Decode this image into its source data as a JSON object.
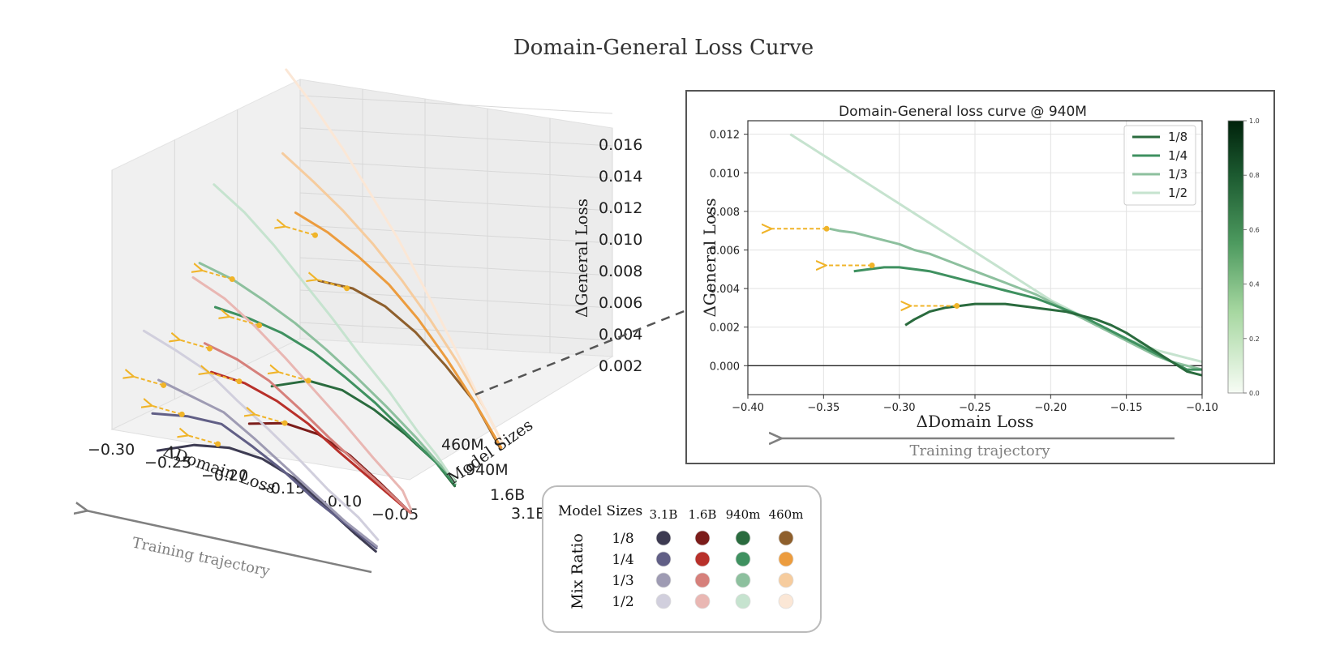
{
  "title": "Domain-General Loss Curve",
  "colors": {
    "3.1B": [
      "#3d3b52",
      "#615f86",
      "#9e9bb3",
      "#d1cfdd"
    ],
    "1.6B": [
      "#7b1c1a",
      "#b8302a",
      "#d6807b",
      "#e9b7b3"
    ],
    "940M": [
      "#2a6b3e",
      "#3f9160",
      "#8dc09e",
      "#c6e3cf"
    ],
    "460M": [
      "#8e5f2c",
      "#ec9c3e",
      "#f6cc9e",
      "#fbe7d6"
    ],
    "arrow": "#f0b429",
    "trajectory": "#808080"
  },
  "chart_data": [
    {
      "type": "line3d",
      "xlabel": "ΔDomain  Loss",
      "ylabel": "Model Sizes",
      "zlabel": "ΔGeneral Loss",
      "xticks": [
        "−0.30",
        "−0.25",
        "−0.20",
        "−0.15",
        "−0.10",
        "−0.05"
      ],
      "yticks": [
        "3.1B",
        "1.6B",
        "940M",
        "460M"
      ],
      "zticks": [
        "0.002",
        "0.004",
        "0.006",
        "0.008",
        "0.010",
        "0.012",
        "0.014",
        "0.016"
      ],
      "xlim": [
        -0.32,
        -0.04
      ],
      "zlim": [
        0.001,
        0.017
      ],
      "trajectory_label": "Training trajectory",
      "series": [
        {
          "size": "3.1B",
          "ratio": "1/8",
          "x": [
            -0.27,
            -0.24,
            -0.21,
            -0.18,
            -0.15,
            -0.12,
            -0.09,
            -0.07
          ],
          "z": [
            0.0006,
            0.0016,
            0.0021,
            0.0021,
            0.0016,
            0.0006,
            -0.0004,
            -0.001
          ]
        },
        {
          "size": "3.1B",
          "ratio": "1/4",
          "x": [
            -0.28,
            -0.25,
            -0.22,
            -0.19,
            -0.16,
            -0.13,
            -0.1,
            -0.07
          ],
          "z": [
            0.0026,
            0.0031,
            0.0033,
            0.0026,
            0.0018,
            0.0008,
            0.0,
            -0.0008
          ]
        },
        {
          "size": "3.1B",
          "ratio": "1/3",
          "x": [
            -0.28,
            -0.25,
            -0.22,
            -0.19,
            -0.16,
            -0.13,
            -0.1,
            -0.07
          ],
          "z": [
            0.0046,
            0.0043,
            0.004,
            0.0031,
            0.0021,
            0.0011,
            0.0001,
            -0.0007
          ]
        },
        {
          "size": "3.1B",
          "ratio": "1/2",
          "x": [
            -0.3,
            -0.27,
            -0.24,
            -0.21,
            -0.18,
            -0.15,
            -0.12,
            -0.09,
            -0.07
          ],
          "z": [
            0.0071,
            0.0066,
            0.006,
            0.0049,
            0.0039,
            0.0028,
            0.0016,
            0.0006,
            -0.0003
          ]
        },
        {
          "size": "1.6B",
          "ratio": "1/8",
          "x": [
            -0.23,
            -0.2,
            -0.17,
            -0.14,
            -0.11,
            -0.08
          ],
          "z": [
            0.0014,
            0.0021,
            0.0021,
            0.0015,
            0.0005,
            -0.0006
          ]
        },
        {
          "size": "1.6B",
          "ratio": "1/4",
          "x": [
            -0.27,
            -0.24,
            -0.21,
            -0.18,
            -0.15,
            -0.12,
            -0.09,
            -0.08
          ],
          "z": [
            0.0036,
            0.0036,
            0.0032,
            0.0025,
            0.0015,
            0.0006,
            -0.0003,
            -0.0006
          ]
        },
        {
          "size": "1.6B",
          "ratio": "1/3",
          "x": [
            -0.28,
            -0.25,
            -0.22,
            -0.19,
            -0.16,
            -0.13,
            -0.1,
            -0.08
          ],
          "z": [
            0.0051,
            0.0048,
            0.0042,
            0.0032,
            0.0021,
            0.0011,
            0.0001,
            -0.0006
          ]
        },
        {
          "size": "1.6B",
          "ratio": "1/2",
          "x": [
            -0.3,
            -0.27,
            -0.24,
            -0.21,
            -0.18,
            -0.15,
            -0.12,
            -0.09,
            -0.08
          ],
          "z": [
            0.0086,
            0.008,
            0.007,
            0.0058,
            0.0045,
            0.0032,
            0.0018,
            0.0005,
            -0.0004
          ]
        },
        {
          "size": "940M",
          "ratio": "1/8",
          "x": [
            -0.25,
            -0.22,
            -0.19,
            -0.16,
            -0.13,
            -0.1,
            -0.08
          ],
          "z": [
            0.0015,
            0.0025,
            0.0026,
            0.0021,
            0.0013,
            0.0003,
            -0.0007
          ]
        },
        {
          "size": "940M",
          "ratio": "1/4",
          "x": [
            -0.31,
            -0.28,
            -0.25,
            -0.22,
            -0.19,
            -0.16,
            -0.13,
            -0.1,
            -0.08
          ],
          "z": [
            0.0049,
            0.0049,
            0.0047,
            0.0042,
            0.0034,
            0.0025,
            0.0014,
            0.0003,
            -0.0006
          ]
        },
        {
          "size": "940M",
          "ratio": "1/3",
          "x": [
            -0.33,
            -0.3,
            -0.27,
            -0.24,
            -0.21,
            -0.18,
            -0.15,
            -0.12,
            -0.1,
            -0.08
          ],
          "z": [
            0.0071,
            0.0068,
            0.0062,
            0.0055,
            0.0046,
            0.0036,
            0.0025,
            0.0013,
            0.0004,
            -0.0004
          ]
        },
        {
          "size": "940M",
          "ratio": "1/2",
          "x": [
            -0.33,
            -0.3,
            -0.27,
            -0.24,
            -0.21,
            -0.18,
            -0.15,
            -0.12,
            -0.1,
            -0.08
          ],
          "z": [
            0.0118,
            0.0108,
            0.0095,
            0.008,
            0.0065,
            0.0049,
            0.0034,
            0.0017,
            0.0007,
            -0.0005
          ]
        },
        {
          "size": "460M",
          "ratio": "1/8",
          "x": [
            -0.26,
            -0.23,
            -0.2,
            -0.17,
            -0.14,
            -0.11,
            -0.08
          ],
          "z": [
            0.0059,
            0.0061,
            0.0057,
            0.0048,
            0.0035,
            0.002,
            -0.0002
          ]
        },
        {
          "size": "460M",
          "ratio": "1/4",
          "x": [
            -0.29,
            -0.26,
            -0.23,
            -0.2,
            -0.17,
            -0.14,
            -0.11,
            -0.08
          ],
          "z": [
            0.0093,
            0.0088,
            0.008,
            0.007,
            0.0056,
            0.0039,
            0.002,
            -0.0001
          ]
        },
        {
          "size": "460M",
          "ratio": "1/3",
          "x": [
            -0.31,
            -0.28,
            -0.25,
            -0.22,
            -0.19,
            -0.16,
            -0.13,
            -0.1,
            -0.08
          ],
          "z": [
            0.0124,
            0.0114,
            0.0103,
            0.009,
            0.0075,
            0.0058,
            0.0039,
            0.0018,
            0.0002
          ]
        },
        {
          "size": "460M",
          "ratio": "1/2",
          "x": [
            -0.32,
            -0.29,
            -0.26,
            -0.23,
            -0.2,
            -0.17,
            -0.14,
            -0.11,
            -0.08
          ],
          "z": [
            0.0172,
            0.0156,
            0.0138,
            0.0118,
            0.0098,
            0.0075,
            0.0051,
            0.0026,
            0.0002
          ]
        }
      ],
      "arrows": [
        {
          "size": "3.1B",
          "x": -0.22,
          "z": 0.0021
        },
        {
          "size": "3.1B",
          "x": -0.255,
          "z": 0.0031
        },
        {
          "size": "3.1B",
          "x": -0.275,
          "z": 0.0044
        },
        {
          "size": "1.6B",
          "x": -0.2,
          "z": 0.0021
        },
        {
          "size": "1.6B",
          "x": -0.245,
          "z": 0.0036
        },
        {
          "size": "1.6B",
          "x": -0.275,
          "z": 0.0049
        },
        {
          "size": "940M",
          "x": -0.22,
          "z": 0.0025
        },
        {
          "size": "940M",
          "x": -0.27,
          "z": 0.0047
        },
        {
          "size": "940M",
          "x": -0.3,
          "z": 0.0068
        },
        {
          "size": "460M",
          "x": -0.235,
          "z": 0.006
        },
        {
          "size": "460M",
          "x": -0.27,
          "z": 0.0084
        }
      ]
    },
    {
      "type": "line",
      "title": "Domain-General loss curve @ 940M",
      "xlabel": "ΔDomain  Loss",
      "ylabel": "ΔGeneral Loss",
      "xlim": [
        -0.4,
        -0.1
      ],
      "ylim": [
        -0.0015,
        0.0127
      ],
      "xticks": [
        -0.4,
        -0.35,
        -0.3,
        -0.25,
        -0.2,
        -0.15,
        -0.1
      ],
      "xtick_labels": [
        "−0.40",
        "−0.35",
        "−0.30",
        "−0.25",
        "−0.20",
        "−0.15",
        "−0.10"
      ],
      "yticks": [
        0.0,
        0.002,
        0.004,
        0.006,
        0.008,
        0.01,
        0.012
      ],
      "ytick_labels": [
        "0.000",
        "0.002",
        "0.004",
        "0.006",
        "0.008",
        "0.010",
        "0.012"
      ],
      "colorbar_ticks": [
        "0.0",
        "0.2",
        "0.4",
        "0.6",
        "0.8",
        "1.0"
      ],
      "trajectory_label": "Training trajectory",
      "series": [
        {
          "name": "1/8",
          "x": [
            -0.296,
            -0.29,
            -0.28,
            -0.27,
            -0.26,
            -0.25,
            -0.24,
            -0.23,
            -0.22,
            -0.21,
            -0.2,
            -0.19,
            -0.18,
            -0.17,
            -0.16,
            -0.15,
            -0.14,
            -0.13,
            -0.12,
            -0.11,
            -0.1
          ],
          "y": [
            0.0021,
            0.0024,
            0.0028,
            0.003,
            0.0031,
            0.0032,
            0.0032,
            0.0032,
            0.0031,
            0.003,
            0.0029,
            0.0028,
            0.0026,
            0.0024,
            0.0021,
            0.0017,
            0.0012,
            0.0007,
            0.0002,
            -0.0003,
            -0.0005
          ]
        },
        {
          "name": "1/4",
          "x": [
            -0.33,
            -0.32,
            -0.31,
            -0.3,
            -0.29,
            -0.28,
            -0.27,
            -0.26,
            -0.25,
            -0.24,
            -0.23,
            -0.22,
            -0.21,
            -0.2,
            -0.19,
            -0.18,
            -0.17,
            -0.16,
            -0.15,
            -0.14,
            -0.13,
            -0.12,
            -0.11,
            -0.1
          ],
          "y": [
            0.0049,
            0.005,
            0.0051,
            0.0051,
            0.005,
            0.0049,
            0.0047,
            0.0045,
            0.0043,
            0.0041,
            0.0039,
            0.0037,
            0.0035,
            0.0032,
            0.0029,
            0.0026,
            0.0022,
            0.0018,
            0.0014,
            0.001,
            0.0006,
            0.0002,
            -0.0002,
            -0.0002
          ]
        },
        {
          "name": "1/3",
          "x": [
            -0.346,
            -0.34,
            -0.33,
            -0.32,
            -0.31,
            -0.3,
            -0.29,
            -0.28,
            -0.27,
            -0.26,
            -0.25,
            -0.24,
            -0.23,
            -0.22,
            -0.21,
            -0.2,
            -0.19,
            -0.18,
            -0.17,
            -0.16,
            -0.15,
            -0.14,
            -0.13,
            -0.12,
            -0.11,
            -0.1
          ],
          "y": [
            0.0071,
            0.007,
            0.0069,
            0.0067,
            0.0065,
            0.0063,
            0.006,
            0.0058,
            0.0055,
            0.0052,
            0.0049,
            0.0046,
            0.0043,
            0.004,
            0.0037,
            0.0033,
            0.0029,
            0.0025,
            0.0021,
            0.0017,
            0.0013,
            0.0009,
            0.0005,
            0.0002,
            0.0,
            -0.0002
          ]
        },
        {
          "name": "1/2",
          "x": [
            -0.372,
            -0.36,
            -0.35,
            -0.34,
            -0.33,
            -0.32,
            -0.31,
            -0.3,
            -0.29,
            -0.28,
            -0.27,
            -0.26,
            -0.25,
            -0.24,
            -0.23,
            -0.22,
            -0.21,
            -0.2,
            -0.19,
            -0.18,
            -0.17,
            -0.16,
            -0.15,
            -0.14,
            -0.13,
            -0.12,
            -0.11,
            -0.1
          ],
          "y": [
            0.012,
            0.0114,
            0.0109,
            0.0104,
            0.0099,
            0.0094,
            0.0089,
            0.0084,
            0.0079,
            0.0074,
            0.0069,
            0.0064,
            0.0059,
            0.0054,
            0.0049,
            0.0044,
            0.0039,
            0.0034,
            0.003,
            0.0026,
            0.0022,
            0.0018,
            0.0014,
            0.0011,
            0.0008,
            0.0006,
            0.0004,
            0.0002
          ]
        }
      ],
      "arrows": [
        {
          "x": -0.262,
          "y": 0.0031,
          "to_x": -0.293
        },
        {
          "x": -0.318,
          "y": 0.0052,
          "to_x": -0.349
        },
        {
          "x": -0.348,
          "y": 0.0071,
          "to_x": -0.385
        }
      ]
    }
  ],
  "legend": {
    "title": "Model Sizes",
    "row_title": "Mix Ratio",
    "columns": [
      "3.1B",
      "1.6B",
      "940m",
      "460m"
    ],
    "rows": [
      "1/8",
      "1/4",
      "1/3",
      "1/2"
    ]
  }
}
